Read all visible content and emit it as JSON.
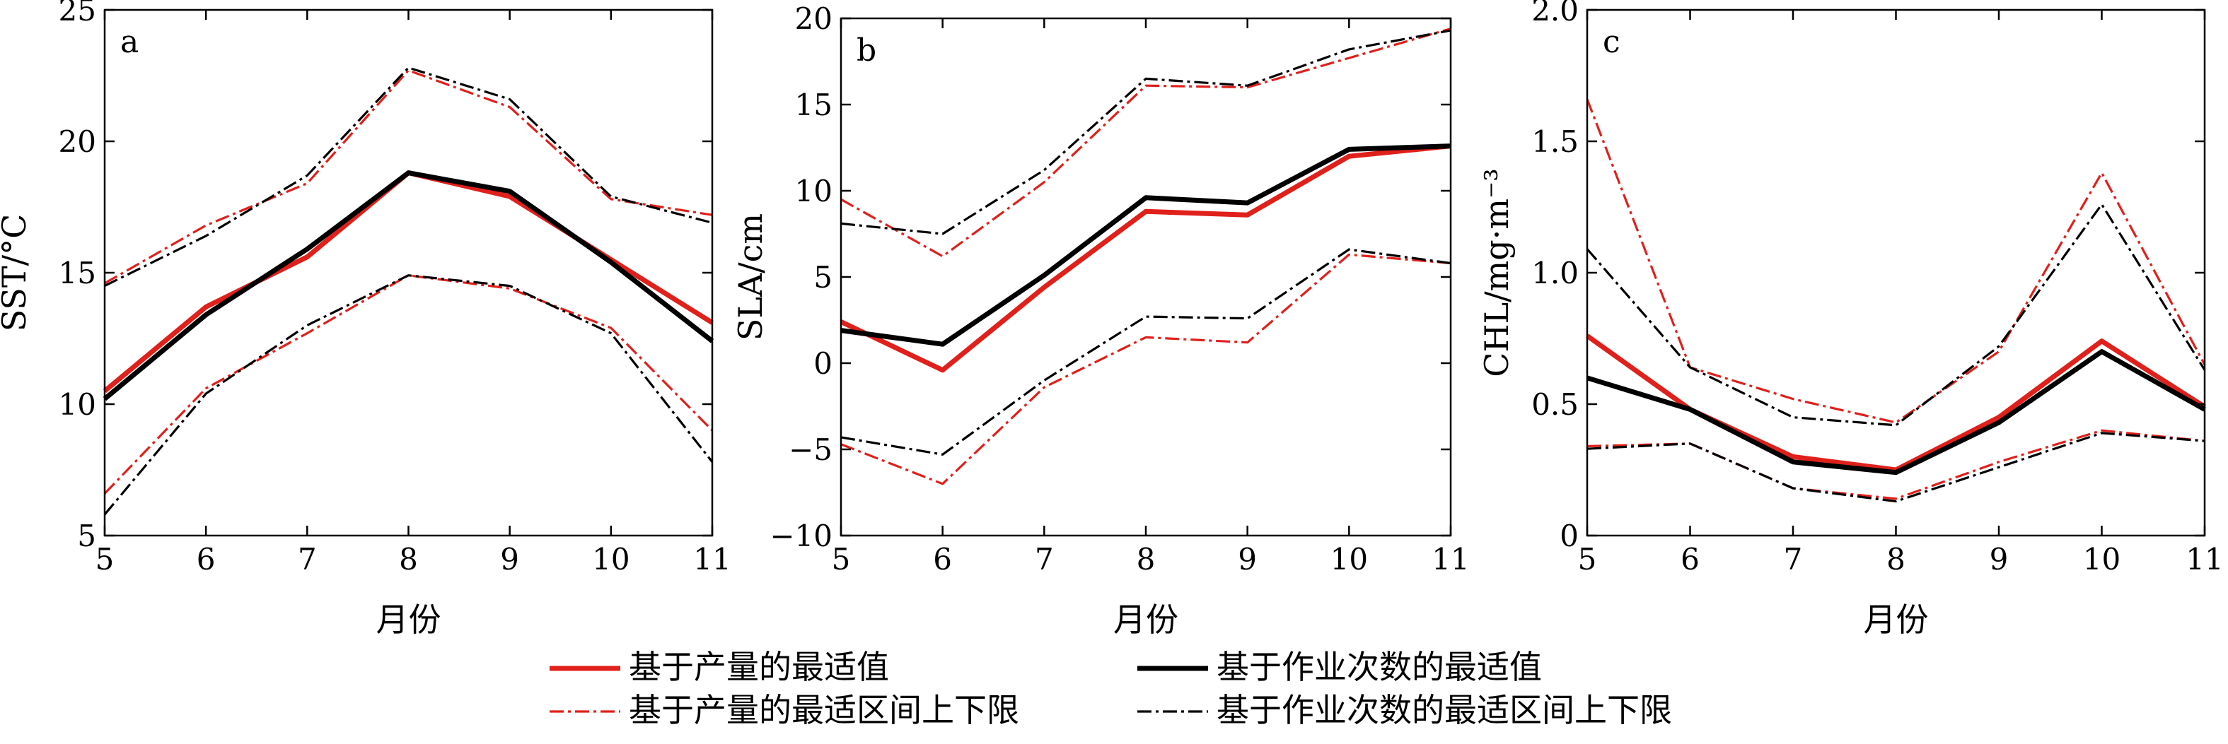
{
  "colors": {
    "yield": "#e0201b",
    "effort": "#000000"
  },
  "legend": {
    "yield_optimum": "基于产量的最适值",
    "effort_optimum": "基于作业次数的最适值",
    "yield_range": "基于产量的最适区间上下限",
    "effort_range": "基于作业次数的最适区间上下限"
  },
  "chart_data": [
    {
      "type": "line",
      "panel_label": "a",
      "xlabel": "月份",
      "ylabel": "SST/°C",
      "x": [
        5,
        6,
        7,
        8,
        9,
        10,
        11
      ],
      "xticks": [
        "5",
        "6",
        "7",
        "8",
        "9",
        "10",
        "11"
      ],
      "ylim": [
        5,
        25
      ],
      "yticks": [
        "5",
        "10",
        "15",
        "20",
        "25"
      ],
      "series": [
        {
          "name": "基于产量的最适值",
          "style": "yield-solid",
          "values": [
            10.5,
            13.7,
            15.6,
            18.8,
            17.9,
            15.5,
            13.1
          ]
        },
        {
          "name": "基于作业次数的最适值",
          "style": "effort-solid",
          "values": [
            10.2,
            13.4,
            15.9,
            18.8,
            18.1,
            15.4,
            12.4
          ]
        },
        {
          "name": "基于产量的最适区间上下限",
          "style": "yield-dash",
          "values": [
            14.6,
            16.8,
            18.4,
            22.7,
            21.3,
            17.8,
            17.2
          ]
        },
        {
          "name": "基于产量的最适区间上下限",
          "style": "yield-dash",
          "values": [
            6.6,
            10.6,
            12.7,
            14.9,
            14.4,
            12.9,
            9.0
          ]
        },
        {
          "name": "基于作业次数的最适区间上下限",
          "style": "effort-dash",
          "values": [
            14.5,
            16.4,
            18.7,
            22.8,
            21.6,
            17.9,
            16.9
          ]
        },
        {
          "name": "基于作业次数的最适区间上下限",
          "style": "effort-dash",
          "values": [
            5.8,
            10.4,
            13.0,
            14.9,
            14.5,
            12.7,
            7.8
          ]
        }
      ]
    },
    {
      "type": "line",
      "panel_label": "b",
      "xlabel": "月份",
      "ylabel": "SLA/cm",
      "x": [
        5,
        6,
        7,
        8,
        9,
        10,
        11
      ],
      "xticks": [
        "5",
        "6",
        "7",
        "8",
        "9",
        "10",
        "11"
      ],
      "ylim": [
        -10,
        20
      ],
      "yticks": [
        "−10",
        "−5",
        "0",
        "5",
        "10",
        "15",
        "20"
      ],
      "series": [
        {
          "name": "基于产量的最适值",
          "style": "yield-solid",
          "values": [
            2.4,
            -0.4,
            4.4,
            8.8,
            8.6,
            12.0,
            12.6
          ]
        },
        {
          "name": "基于作业次数的最适值",
          "style": "effort-solid",
          "values": [
            1.9,
            1.1,
            5.1,
            9.6,
            9.3,
            12.4,
            12.6
          ]
        },
        {
          "name": "基于产量的最适区间上下限",
          "style": "yield-dash",
          "values": [
            9.5,
            6.2,
            10.5,
            16.1,
            16.0,
            17.7,
            19.4
          ]
        },
        {
          "name": "基于产量的最适区间上下限",
          "style": "yield-dash",
          "values": [
            -4.7,
            -7.0,
            -1.4,
            1.5,
            1.2,
            6.3,
            5.8
          ]
        },
        {
          "name": "基于作业次数的最适区间上下限",
          "style": "effort-dash",
          "values": [
            8.1,
            7.5,
            11.2,
            16.5,
            16.1,
            18.2,
            19.3
          ]
        },
        {
          "name": "基于作业次数的最适区间上下限",
          "style": "effort-dash",
          "values": [
            -4.3,
            -5.3,
            -1.0,
            2.7,
            2.6,
            6.6,
            5.8
          ]
        }
      ]
    },
    {
      "type": "line",
      "panel_label": "c",
      "xlabel": "月份",
      "ylabel": "CHL/mg·m⁻³",
      "x": [
        5,
        6,
        7,
        8,
        9,
        10,
        11
      ],
      "xticks": [
        "5",
        "6",
        "7",
        "8",
        "9",
        "10",
        "11"
      ],
      "ylim": [
        0,
        2.0
      ],
      "yticks": [
        "0",
        "0.5",
        "1.0",
        "1.5",
        "2.0"
      ],
      "series": [
        {
          "name": "基于产量的最适值",
          "style": "yield-solid",
          "values": [
            0.76,
            0.48,
            0.3,
            0.25,
            0.45,
            0.74,
            0.49
          ]
        },
        {
          "name": "基于作业次数的最适值",
          "style": "effort-solid",
          "values": [
            0.6,
            0.48,
            0.28,
            0.24,
            0.43,
            0.7,
            0.48
          ]
        },
        {
          "name": "基于产量的最适区间上下限",
          "style": "yield-dash",
          "values": [
            1.66,
            0.64,
            0.52,
            0.43,
            0.7,
            1.38,
            0.65
          ]
        },
        {
          "name": "基于产量的最适区间上下限",
          "style": "yield-dash",
          "values": [
            0.34,
            0.35,
            0.18,
            0.14,
            0.28,
            0.4,
            0.36
          ]
        },
        {
          "name": "基于作业次数的最适区间上下限",
          "style": "effort-dash",
          "values": [
            1.09,
            0.64,
            0.45,
            0.42,
            0.72,
            1.26,
            0.63
          ]
        },
        {
          "name": "基于作业次数的最适区间上下限",
          "style": "effort-dash",
          "values": [
            0.33,
            0.35,
            0.18,
            0.13,
            0.26,
            0.39,
            0.36
          ]
        }
      ]
    }
  ]
}
